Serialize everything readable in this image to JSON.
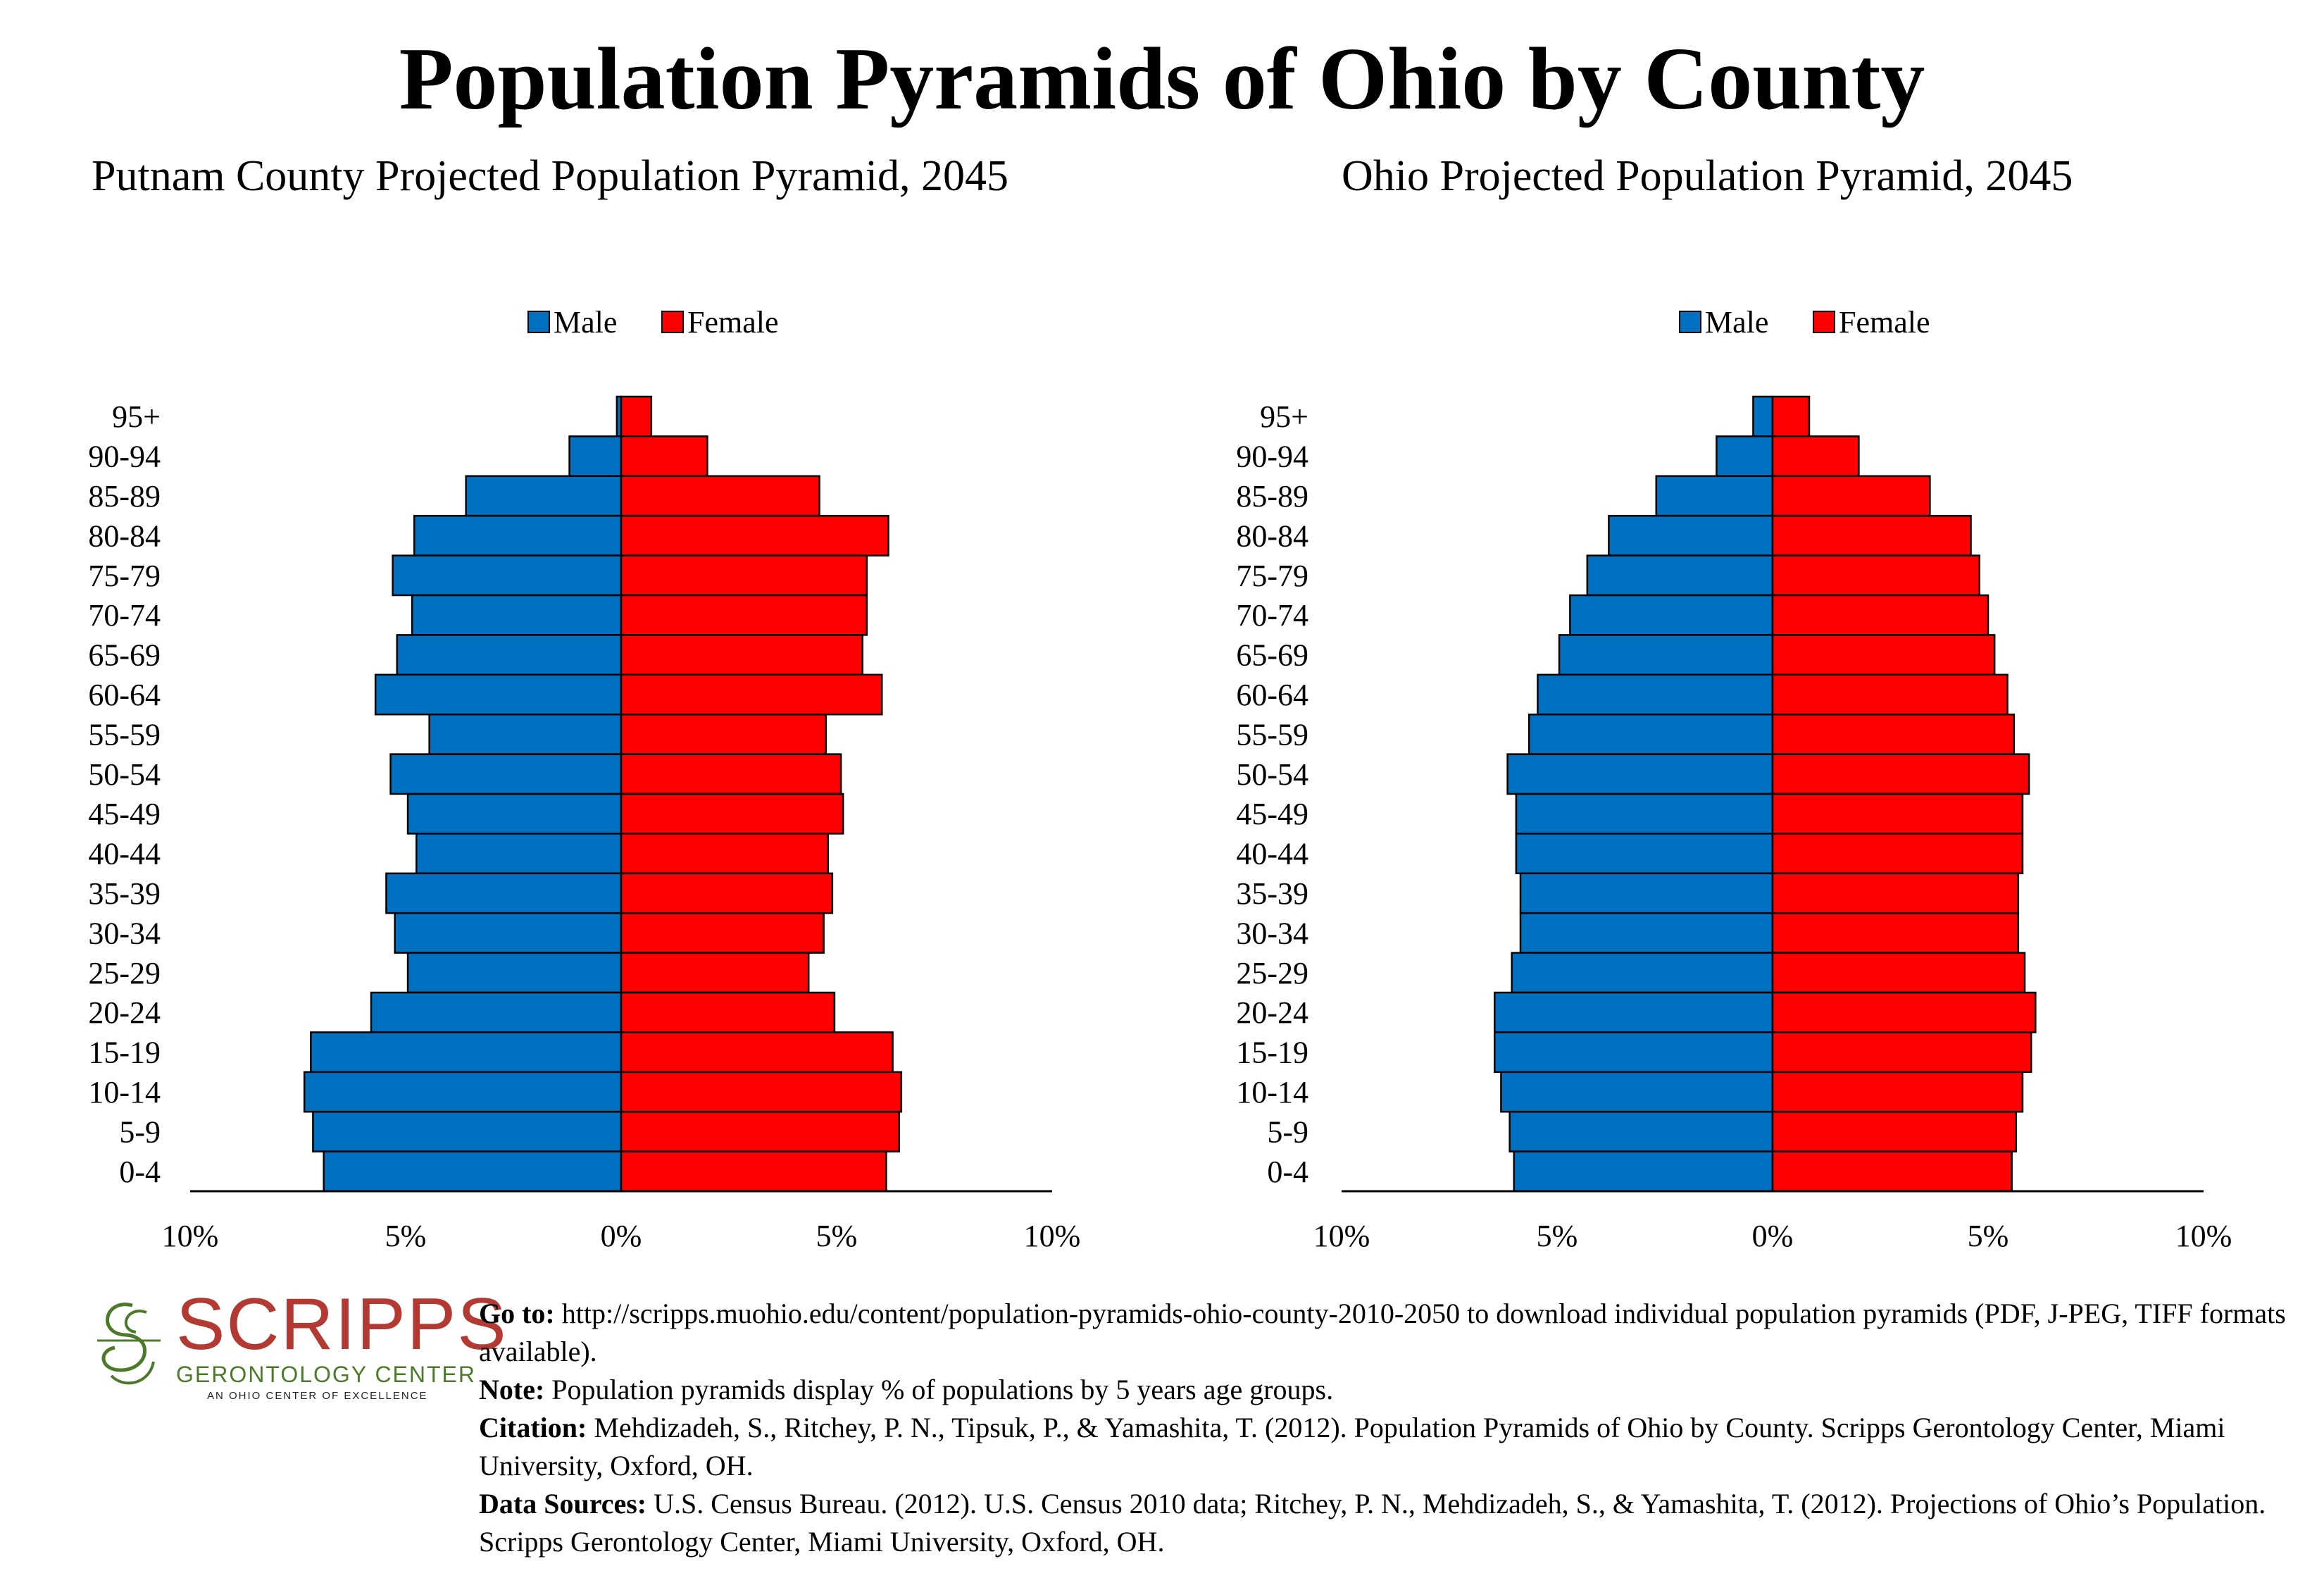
{
  "title": "Population Pyramids of Ohio by County",
  "chart_data": [
    {
      "type": "bar",
      "orientation": "horizontal-pyramid",
      "title": "Putnam County Projected Population Pyramid, 2045",
      "categories": [
        "95+",
        "90-94",
        "85-89",
        "80-84",
        "75-79",
        "70-74",
        "65-69",
        "60-64",
        "55-59",
        "50-54",
        "45-49",
        "40-44",
        "35-39",
        "30-34",
        "25-29",
        "20-24",
        "15-19",
        "10-14",
        "5-9",
        "0-4"
      ],
      "series": [
        {
          "name": "Male",
          "color": "#0070c0",
          "values": [
            0.1,
            1.2,
            3.6,
            4.8,
            5.3,
            4.85,
            5.2,
            5.7,
            4.45,
            5.35,
            4.95,
            4.75,
            5.45,
            5.25,
            4.95,
            5.8,
            7.2,
            7.35,
            7.15,
            6.9
          ]
        },
        {
          "name": "Female",
          "color": "#ff0000",
          "values": [
            0.7,
            2.0,
            4.6,
            6.2,
            5.7,
            5.7,
            5.6,
            6.05,
            4.75,
            5.1,
            5.15,
            4.8,
            4.9,
            4.7,
            4.35,
            4.95,
            6.3,
            6.5,
            6.45,
            6.15
          ]
        }
      ],
      "xticks": [
        "10%",
        "5%",
        "0%",
        "5%",
        "10%"
      ],
      "xlim": [
        -10,
        10
      ],
      "legend": "top"
    },
    {
      "type": "bar",
      "orientation": "horizontal-pyramid",
      "title": "Ohio Projected Population Pyramid, 2045",
      "categories": [
        "95+",
        "90-94",
        "85-89",
        "80-84",
        "75-79",
        "70-74",
        "65-69",
        "60-64",
        "55-59",
        "50-54",
        "45-49",
        "40-44",
        "35-39",
        "30-34",
        "25-29",
        "20-24",
        "15-19",
        "10-14",
        "5-9",
        "0-4"
      ],
      "series": [
        {
          "name": "Male",
          "color": "#0070c0",
          "values": [
            0.45,
            1.3,
            2.7,
            3.8,
            4.3,
            4.7,
            4.95,
            5.45,
            5.65,
            6.15,
            5.95,
            5.95,
            5.85,
            5.85,
            6.05,
            6.45,
            6.45,
            6.3,
            6.1,
            6.0
          ]
        },
        {
          "name": "Female",
          "color": "#ff0000",
          "values": [
            0.85,
            2.0,
            3.65,
            4.6,
            4.8,
            5.0,
            5.15,
            5.45,
            5.6,
            5.95,
            5.8,
            5.8,
            5.7,
            5.7,
            5.85,
            6.1,
            6.0,
            5.8,
            5.65,
            5.55
          ]
        }
      ],
      "xticks": [
        "10%",
        "5%",
        "0%",
        "5%",
        "10%"
      ],
      "xlim": [
        -10,
        10
      ],
      "legend": "top"
    }
  ],
  "logo": {
    "word": "SCRIPPS",
    "sub": "GERONTOLOGY CENTER",
    "tag": "AN OHIO CENTER OF EXCELLENCE"
  },
  "footer": {
    "goto_label": "Go to:",
    "goto_text": "http://scripps.muohio.edu/content/population-pyramids-ohio-county-2010-2050 to download individual population pyramids (PDF, J-PEG, TIFF formats available).",
    "note_label": "Note:",
    "note_text": "Population pyramids display % of populations by 5 years age groups.",
    "citation_label": "Citation:",
    "citation_text": "Mehdizadeh, S., Ritchey, P. N., Tipsuk, P., & Yamashita, T. (2012). Population Pyramids of Ohio by County. Scripps Gerontology Center, Miami University, Oxford, OH.",
    "sources_label": "Data Sources:",
    "sources_text": "U.S. Census Bureau. (2012). U.S. Census 2010 data; Ritchey, P. N., Mehdizadeh, S., & Yamashita, T. (2012). Projections of Ohio’s Population. Scripps Gerontology Center, Miami University, Oxford, OH."
  }
}
